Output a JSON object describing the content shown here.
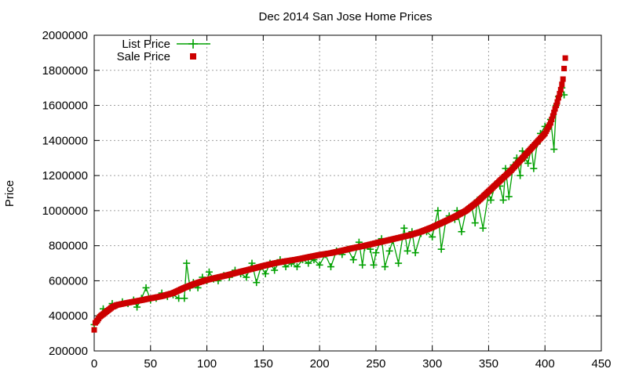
{
  "chart_data": {
    "type": "line",
    "title": "Dec 2014 San Jose Home Prices",
    "xlabel": "",
    "ylabel": "Price",
    "xlim": [
      0,
      450
    ],
    "ylim": [
      200000,
      2000000
    ],
    "x_ticks": [
      "0",
      "50",
      "100",
      "150",
      "200",
      "250",
      "300",
      "350",
      "400",
      "450"
    ],
    "y_ticks": [
      "200000",
      "400000",
      "600000",
      "800000",
      "1000000",
      "1200000",
      "1400000",
      "1600000",
      "1800000",
      "2000000"
    ],
    "grid": true,
    "legend_position": "top-left",
    "series": [
      {
        "name": "List Price",
        "style": "line-with-plus-markers",
        "color": "#00a000",
        "sparse_points": [
          [
            0,
            350000
          ],
          [
            2,
            370000
          ],
          [
            5,
            400000
          ],
          [
            8,
            440000
          ],
          [
            12,
            430000
          ],
          [
            16,
            470000
          ],
          [
            20,
            460000
          ],
          [
            25,
            480000
          ],
          [
            30,
            470000
          ],
          [
            35,
            490000
          ],
          [
            38,
            450000
          ],
          [
            42,
            500000
          ],
          [
            46,
            560000
          ],
          [
            50,
            490000
          ],
          [
            55,
            500000
          ],
          [
            60,
            530000
          ],
          [
            65,
            510000
          ],
          [
            70,
            520000
          ],
          [
            75,
            500000
          ],
          [
            80,
            500000
          ],
          [
            82,
            700000
          ],
          [
            85,
            560000
          ],
          [
            88,
            590000
          ],
          [
            92,
            560000
          ],
          [
            96,
            620000
          ],
          [
            100,
            600000
          ],
          [
            102,
            650000
          ],
          [
            106,
            610000
          ],
          [
            110,
            600000
          ],
          [
            115,
            630000
          ],
          [
            120,
            620000
          ],
          [
            125,
            660000
          ],
          [
            130,
            640000
          ],
          [
            135,
            620000
          ],
          [
            140,
            700000
          ],
          [
            144,
            590000
          ],
          [
            148,
            680000
          ],
          [
            152,
            640000
          ],
          [
            156,
            700000
          ],
          [
            160,
            660000
          ],
          [
            165,
            720000
          ],
          [
            170,
            680000
          ],
          [
            175,
            700000
          ],
          [
            180,
            680000
          ],
          [
            185,
            720000
          ],
          [
            190,
            700000
          ],
          [
            195,
            720000
          ],
          [
            200,
            690000
          ],
          [
            205,
            750000
          ],
          [
            210,
            680000
          ],
          [
            215,
            770000
          ],
          [
            220,
            750000
          ],
          [
            225,
            780000
          ],
          [
            230,
            720000
          ],
          [
            235,
            820000
          ],
          [
            238,
            690000
          ],
          [
            240,
            790000
          ],
          [
            245,
            780000
          ],
          [
            248,
            690000
          ],
          [
            250,
            760000
          ],
          [
            255,
            840000
          ],
          [
            258,
            680000
          ],
          [
            262,
            770000
          ],
          [
            265,
            830000
          ],
          [
            270,
            700000
          ],
          [
            275,
            900000
          ],
          [
            278,
            770000
          ],
          [
            282,
            880000
          ],
          [
            285,
            760000
          ],
          [
            290,
            870000
          ],
          [
            295,
            880000
          ],
          [
            300,
            850000
          ],
          [
            305,
            1000000
          ],
          [
            308,
            780000
          ],
          [
            312,
            940000
          ],
          [
            315,
            970000
          ],
          [
            320,
            950000
          ],
          [
            322,
            1000000
          ],
          [
            326,
            880000
          ],
          [
            330,
            1000000
          ],
          [
            335,
            1020000
          ],
          [
            338,
            930000
          ],
          [
            340,
            1060000
          ],
          [
            345,
            900000
          ],
          [
            350,
            1100000
          ],
          [
            352,
            1060000
          ],
          [
            356,
            1150000
          ],
          [
            360,
            1140000
          ],
          [
            363,
            1060000
          ],
          [
            365,
            1240000
          ],
          [
            368,
            1080000
          ],
          [
            372,
            1260000
          ],
          [
            375,
            1300000
          ],
          [
            378,
            1200000
          ],
          [
            380,
            1340000
          ],
          [
            382,
            1300000
          ],
          [
            385,
            1270000
          ],
          [
            388,
            1360000
          ],
          [
            390,
            1240000
          ],
          [
            393,
            1380000
          ],
          [
            396,
            1440000
          ],
          [
            400,
            1480000
          ],
          [
            405,
            1520000
          ],
          [
            408,
            1350000
          ],
          [
            410,
            1600000
          ],
          [
            412,
            1650000
          ],
          [
            415,
            1700000
          ],
          [
            417,
            1660000
          ]
        ]
      },
      {
        "name": "Sale Price",
        "style": "square-markers",
        "color": "#cc0000",
        "anchor_points": [
          [
            0,
            320000
          ],
          [
            1,
            360000
          ],
          [
            3,
            375000
          ],
          [
            5,
            395000
          ],
          [
            8,
            410000
          ],
          [
            12,
            430000
          ],
          [
            16,
            450000
          ],
          [
            20,
            462000
          ],
          [
            30,
            475000
          ],
          [
            40,
            487000
          ],
          [
            50,
            500000
          ],
          [
            60,
            512000
          ],
          [
            70,
            530000
          ],
          [
            80,
            560000
          ],
          [
            90,
            585000
          ],
          [
            100,
            605000
          ],
          [
            110,
            620000
          ],
          [
            120,
            635000
          ],
          [
            130,
            652000
          ],
          [
            140,
            668000
          ],
          [
            150,
            685000
          ],
          [
            160,
            700000
          ],
          [
            170,
            712000
          ],
          [
            180,
            722000
          ],
          [
            190,
            735000
          ],
          [
            200,
            748000
          ],
          [
            210,
            758000
          ],
          [
            220,
            772000
          ],
          [
            230,
            787000
          ],
          [
            240,
            800000
          ],
          [
            250,
            815000
          ],
          [
            260,
            830000
          ],
          [
            270,
            845000
          ],
          [
            280,
            860000
          ],
          [
            290,
            880000
          ],
          [
            300,
            905000
          ],
          [
            310,
            935000
          ],
          [
            320,
            965000
          ],
          [
            330,
            1000000
          ],
          [
            340,
            1050000
          ],
          [
            350,
            1110000
          ],
          [
            360,
            1170000
          ],
          [
            370,
            1230000
          ],
          [
            380,
            1300000
          ],
          [
            390,
            1370000
          ],
          [
            400,
            1440000
          ],
          [
            405,
            1500000
          ],
          [
            408,
            1560000
          ],
          [
            411,
            1620000
          ],
          [
            414,
            1690000
          ],
          [
            416,
            1750000
          ],
          [
            417,
            1810000
          ],
          [
            418,
            1870000
          ]
        ]
      }
    ]
  }
}
